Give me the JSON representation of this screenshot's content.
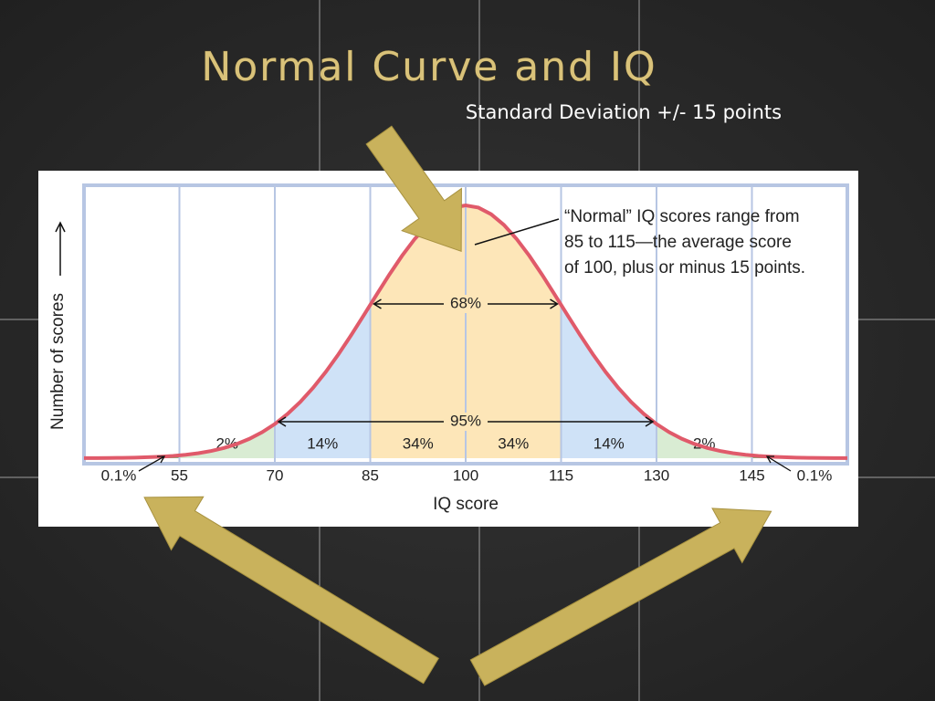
{
  "title": "Normal Curve and IQ",
  "subtitle": "Standard Deviation +/- 15 points",
  "chart_data": {
    "type": "normal-curve",
    "xlabel": "IQ score",
    "ylabel": "Number of scores",
    "xlim": [
      40,
      160
    ],
    "xticks": [
      55,
      70,
      85,
      100,
      115,
      130,
      145
    ],
    "curve_color": "#e05a6a",
    "bands": {
      "values": [
        2,
        14,
        34,
        34,
        14,
        2
      ],
      "value_labels": [
        "2%",
        "14%",
        "34%",
        "34%",
        "14%",
        "2%"
      ],
      "colors": [
        "#d9ecd3",
        "#cfe2f7",
        "#fde6b8",
        "#fde6b8",
        "#cfe2f7",
        "#d9ecd3"
      ]
    },
    "tails": {
      "values": [
        0.1,
        0.1
      ],
      "value_labels": [
        "0.1%",
        "0.1%"
      ],
      "color": "#7fb07a"
    },
    "spans": [
      {
        "value": 68,
        "label": "68%"
      },
      {
        "value": 95,
        "label": "95%"
      }
    ],
    "annotation": [
      "“Normal” IQ scores range from",
      "85 to 115—the average score",
      "of 100, plus or minus 15 points."
    ]
  }
}
